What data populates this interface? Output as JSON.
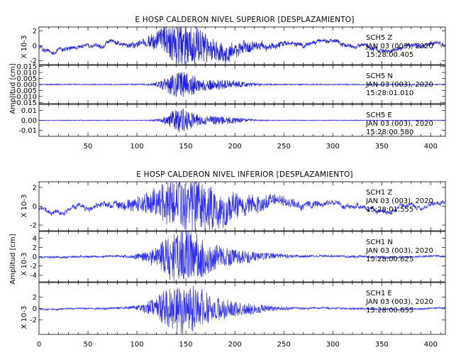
{
  "chart_data": [
    {
      "type": "line",
      "title": "E HOSP CALDERON NIVEL SUPERIOR [DESPLAZAMIENTO]",
      "ylabel": "Amplitud [cm]",
      "xlim": [
        0,
        415
      ],
      "xticks": [
        50,
        100,
        150,
        200,
        250,
        300,
        350,
        400
      ],
      "series_color": "#1a1adf",
      "panels": [
        {
          "name": "SCH5  Z",
          "label_lines": [
            "SCH5  Z",
            "JAN 03 (003), 2020",
            "15:28:00.405"
          ],
          "scale_label": "X 10-3",
          "ylim": [
            -2.5,
            2.5
          ],
          "yticks": [
            2,
            0,
            -2
          ],
          "ytick_labels": [
            "2",
            "0",
            "-2"
          ],
          "background_level": 0.9,
          "peak": 2.6,
          "drift": 0.8,
          "burst_center": 145,
          "burst_width": 26,
          "lowfreq_mix": 0.55
        },
        {
          "name": "SCH5  N",
          "label_lines": [
            "SCH5  N",
            "JAN 03 (003), 2020",
            "15:28:01.010"
          ],
          "scale_label": "",
          "ylim": [
            -0.016,
            0.016
          ],
          "yticks": [
            0.015,
            0.01,
            0.005,
            0,
            -0.005,
            -0.01,
            -0.015
          ],
          "ytick_labels": [
            "0.015",
            "0.010",
            "0.005",
            "0.000",
            "-0.005",
            "-0.010",
            "-0.015"
          ],
          "background_level": 0.0008,
          "peak": 0.012,
          "drift": 0,
          "burst_center": 145,
          "burst_width": 18,
          "lowfreq_mix": 0.1
        },
        {
          "name": "SCH5  E",
          "label_lines": [
            "SCH5  E",
            "JAN 03 (003), 2020",
            "15:28:00.580"
          ],
          "scale_label": "",
          "ylim": [
            -0.016,
            0.016
          ],
          "yticks": [
            0.01,
            0,
            -0.01
          ],
          "ytick_labels": [
            "0.01",
            "0.00",
            "-0.01"
          ],
          "background_level": 0.0006,
          "peak": 0.013,
          "drift": 0,
          "burst_center": 145,
          "burst_width": 16,
          "lowfreq_mix": 0.1
        }
      ]
    },
    {
      "type": "line",
      "title": "E HOSP CALDERON NIVEL INFERIOR [DESPLAZAMIENTO]",
      "ylabel": "Amplitud [cm]",
      "xlim": [
        0,
        415
      ],
      "xticks": [
        0,
        50,
        100,
        150,
        200,
        250,
        300,
        350,
        400
      ],
      "series_color": "#2b2bff",
      "panels": [
        {
          "name": "SCH1  Z",
          "label_lines": [
            "SCH1  Z",
            "JAN 03 (003), 2020",
            "15:28:01.555"
          ],
          "scale_label": "X 10-3",
          "ylim": [
            -2.6,
            2.6
          ],
          "yticks": [
            2,
            0,
            -2
          ],
          "ytick_labels": [
            "2",
            "0",
            "-2"
          ],
          "background_level": 0.8,
          "peak": 2.5,
          "drift": 0.9,
          "burst_center": 150,
          "burst_width": 40,
          "lowfreq_mix": 0.6
        },
        {
          "name": "SCH1  N",
          "label_lines": [
            "SCH1  N",
            "JAN 03 (003), 2020",
            "15:28:00.625"
          ],
          "scale_label": "X 10-3",
          "ylim": [
            -5.5,
            5.5
          ],
          "yticks": [
            4,
            2,
            0,
            -2,
            -4
          ],
          "ytick_labels": [
            "4",
            "2",
            "0",
            "-2",
            "-4"
          ],
          "background_level": 0.5,
          "peak": 5.2,
          "drift": 0.3,
          "burst_center": 145,
          "burst_width": 28,
          "lowfreq_mix": 0.3
        },
        {
          "name": "SCH1  E",
          "label_lines": [
            "SCH1  E",
            "JAN 03 (003), 2020",
            "15:28:00.655"
          ],
          "scale_label": "X 10-3",
          "ylim": [
            -4.5,
            4.5
          ],
          "yticks": [
            2,
            0,
            -2
          ],
          "ytick_labels": [
            "2",
            "0",
            "-2"
          ],
          "background_level": 0.35,
          "peak": 4.1,
          "drift": 0.3,
          "burst_center": 145,
          "burst_width": 28,
          "lowfreq_mix": 0.3
        }
      ]
    }
  ]
}
